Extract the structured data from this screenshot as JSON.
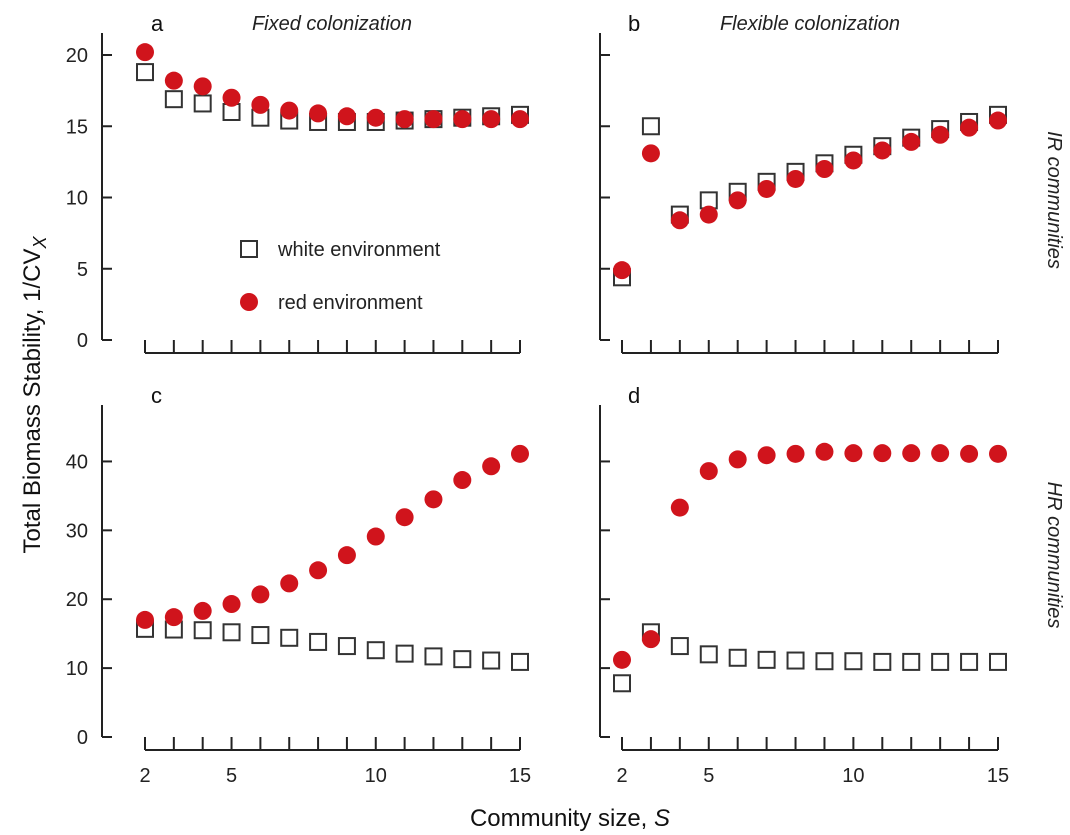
{
  "chart_data": {
    "type": "scatter",
    "ylabel": "Total Biomass Stability, 1/CV",
    "ylabel_subscript": "X",
    "xlabel": "Community size, ",
    "xlabel_symbol": "S",
    "x_ticks": [
      2,
      5,
      10,
      15
    ],
    "x_range": [
      2,
      15
    ],
    "grid": false,
    "legend": {
      "placement": "inside panel a, center-left",
      "white_label": "white environment",
      "red_label": "red environment"
    },
    "column_titles": [
      "Fixed colonization",
      "Flexible colonization"
    ],
    "row_titles": [
      "IR communities",
      "HR communities"
    ],
    "colors": {
      "white": "#ffffff",
      "white_edge": "#333333",
      "red": "#d0141c"
    },
    "panels": [
      {
        "letter": "a",
        "ylim": [
          0,
          20
        ],
        "y_ticks": [
          0,
          5,
          10,
          15,
          20
        ],
        "x": [
          2,
          3,
          4,
          5,
          6,
          7,
          8,
          9,
          10,
          11,
          12,
          13,
          14,
          15
        ],
        "series": [
          {
            "name": "white environment",
            "values": [
              18.8,
              16.9,
              16.6,
              16.0,
              15.6,
              15.4,
              15.3,
              15.3,
              15.3,
              15.4,
              15.5,
              15.6,
              15.7,
              15.8
            ]
          },
          {
            "name": "red environment",
            "values": [
              20.2,
              18.2,
              17.8,
              17.0,
              16.5,
              16.1,
              15.9,
              15.7,
              15.6,
              15.5,
              15.5,
              15.5,
              15.5,
              15.5
            ]
          }
        ]
      },
      {
        "letter": "b",
        "ylim": [
          0,
          20
        ],
        "y_ticks": [
          0,
          5,
          10,
          15,
          20
        ],
        "x": [
          2,
          3,
          4,
          5,
          6,
          7,
          8,
          9,
          10,
          11,
          12,
          13,
          14,
          15
        ],
        "series": [
          {
            "name": "white environment",
            "values": [
              4.4,
              15.0,
              8.8,
              9.8,
              10.4,
              11.1,
              11.8,
              12.4,
              13.0,
              13.6,
              14.2,
              14.8,
              15.3,
              15.8
            ]
          },
          {
            "name": "red environment",
            "values": [
              4.9,
              13.1,
              8.4,
              8.8,
              9.8,
              10.6,
              11.3,
              12.0,
              12.6,
              13.3,
              13.9,
              14.4,
              14.9,
              15.4
            ]
          }
        ]
      },
      {
        "letter": "c",
        "ylim": [
          0,
          45
        ],
        "y_ticks": [
          0,
          10,
          20,
          30,
          40
        ],
        "x": [
          2,
          3,
          4,
          5,
          6,
          7,
          8,
          9,
          10,
          11,
          12,
          13,
          14,
          15
        ],
        "series": [
          {
            "name": "white environment",
            "values": [
              15.7,
              15.6,
              15.5,
              15.2,
              14.8,
              14.4,
              13.8,
              13.2,
              12.6,
              12.1,
              11.7,
              11.3,
              11.1,
              10.9
            ]
          },
          {
            "name": "red environment",
            "values": [
              17.0,
              17.4,
              18.3,
              19.3,
              20.7,
              22.3,
              24.2,
              26.4,
              29.1,
              31.9,
              34.5,
              37.3,
              39.3,
              41.1
            ]
          }
        ]
      },
      {
        "letter": "d",
        "ylim": [
          0,
          45
        ],
        "y_ticks": [
          0,
          10,
          20,
          30,
          40
        ],
        "x": [
          2,
          3,
          4,
          5,
          6,
          7,
          8,
          9,
          10,
          11,
          12,
          13,
          14,
          15
        ],
        "series": [
          {
            "name": "white environment",
            "values": [
              7.8,
              15.2,
              13.2,
              12.0,
              11.5,
              11.2,
              11.1,
              11.0,
              11.0,
              10.9,
              10.9,
              10.9,
              10.9,
              10.9
            ]
          },
          {
            "name": "red environment",
            "values": [
              11.2,
              14.2,
              33.3,
              38.6,
              40.3,
              40.9,
              41.1,
              41.4,
              41.2,
              41.2,
              41.2,
              41.2,
              41.1,
              41.1
            ]
          }
        ]
      }
    ]
  }
}
